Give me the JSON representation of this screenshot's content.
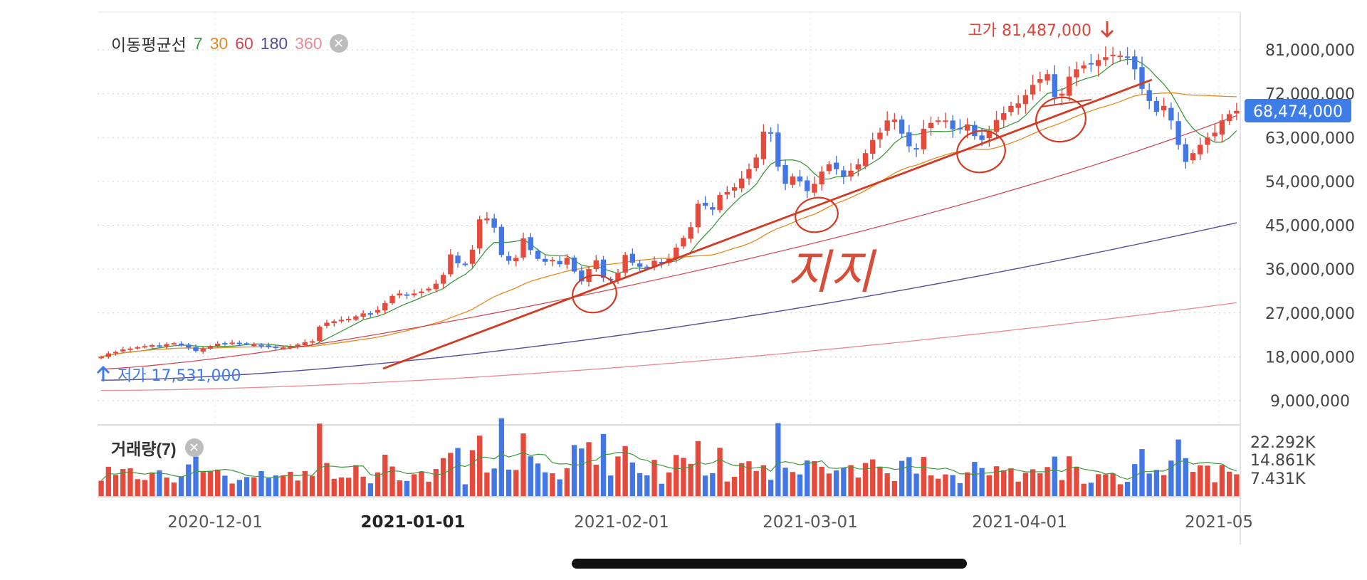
{
  "legend": {
    "title": "이동평균선",
    "periods": [
      {
        "label": "7",
        "color": "#3c9a3c"
      },
      {
        "label": "30",
        "color": "#e58a1f"
      },
      {
        "label": "60",
        "color": "#d2434e"
      },
      {
        "label": "180",
        "color": "#5b4a9b"
      },
      {
        "label": "360",
        "color": "#e98a94"
      }
    ],
    "close_icon": "close-icon"
  },
  "volume_legend": {
    "title": "거래량(7)",
    "close_icon": "close-icon"
  },
  "colors": {
    "up": "#e64a3c",
    "down": "#4477e6",
    "current": "#3d7de8",
    "grid": "#d5d5d5",
    "annotation": "#d33a22"
  },
  "annotations": {
    "high_label": "고가 81,487,000",
    "low_label": "저가 17,531,000",
    "handwritten": "지지"
  },
  "chart_data": {
    "type": "candlestick",
    "title": "",
    "xlabel": "",
    "ylabel": "",
    "x_ticks": [
      "2020-12-01",
      "2021-01-01",
      "2021-02-01",
      "2021-03-01",
      "2021-04-01",
      "2021-05"
    ],
    "x_tick_bold": "2021-01-01",
    "y_ticks": [
      "81,000,000",
      "72,000,000",
      "63,000,000",
      "54,000,000",
      "45,000,000",
      "36,000,000",
      "27,000,000",
      "18,000,000",
      "9,000,000"
    ],
    "ylim": [
      3000000,
      84000000
    ],
    "current_price": 68474000,
    "current_price_label": "68,474,000",
    "high": 81487000,
    "low": 17531000,
    "close_series": [
      18000000,
      18700000,
      19000000,
      19500000,
      19700000,
      20000000,
      20200000,
      20400000,
      20100000,
      20600000,
      20800000,
      20500000,
      19900000,
      19200000,
      19700000,
      20200000,
      20700000,
      20800000,
      20900000,
      20700000,
      20600000,
      20500000,
      20300000,
      20000000,
      19800000,
      19900000,
      20100000,
      20500000,
      21000000,
      21200000,
      24200000,
      25000000,
      25300000,
      25600000,
      25800000,
      26300000,
      26900000,
      26900000,
      27600000,
      29000000,
      30500000,
      31000000,
      30700000,
      31000000,
      31400000,
      32000000,
      33000000,
      34800000,
      39000000,
      37200000,
      37000000,
      40000000,
      46200000,
      46400000,
      44500000,
      38900000,
      37700000,
      38300000,
      42300000,
      39900000,
      38100000,
      37500000,
      37900000,
      37000000,
      38300000,
      35500000,
      33500000,
      36000000,
      37800000,
      34200000,
      33700000,
      35200000,
      38900000,
      37300000,
      36500000,
      36300000,
      37700000,
      37300000,
      38100000,
      40400000,
      42400000,
      44600000,
      49400000,
      49000000,
      48200000,
      51200000,
      51800000,
      52800000,
      54600000,
      56500000,
      58900000,
      64200000,
      63900000,
      57000000,
      53500000,
      55000000,
      54000000,
      52000000,
      53500000,
      56000000,
      57500000,
      56500000,
      55000000,
      56200000,
      57500000,
      59800000,
      62500000,
      64000000,
      66500000,
      66700000,
      63800000,
      61200000,
      60700000,
      64800000,
      66000000,
      66500000,
      66500000,
      64700000,
      64800000,
      65700000,
      63300000,
      62500000,
      64400000,
      66600000,
      68000000,
      69500000,
      70000000,
      71700000,
      73800000,
      75000000,
      76000000,
      71300000,
      72000000,
      75500000,
      77000000,
      77800000,
      78000000,
      78900000,
      79500000,
      80000000,
      79800000,
      79500000,
      77000000,
      73000000,
      70500000,
      68300000,
      69500000,
      66500000,
      61500000,
      58000000,
      59800000,
      61500000,
      63000000,
      64000000,
      66500000,
      67800000,
      68474000
    ],
    "volume": {
      "yticks": [
        "22.292K",
        "14.861K",
        "7.431K"
      ],
      "ylim": [
        0,
        26000
      ]
    }
  }
}
